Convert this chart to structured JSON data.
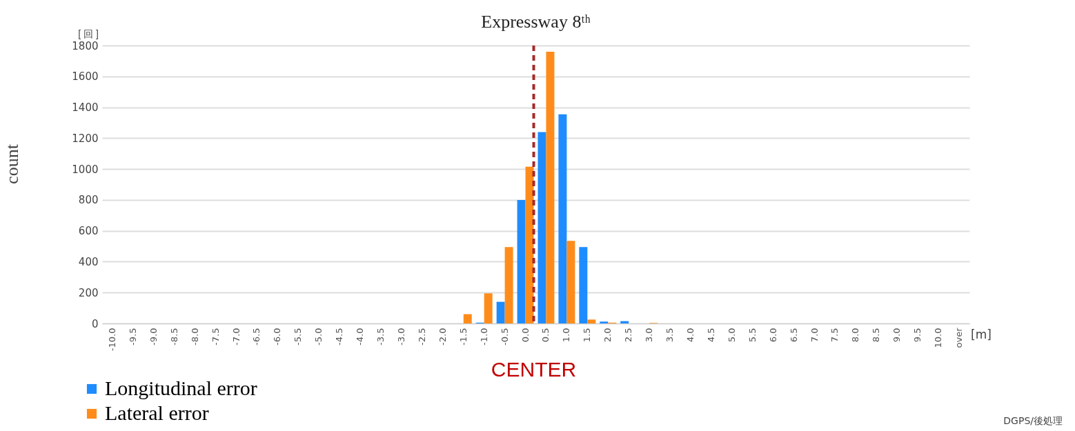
{
  "chart_data": {
    "type": "bar",
    "title": "Expressway 8ᵗʰ",
    "ylabel": "count",
    "xlabel": "[m]",
    "categories": [
      "-10.0",
      "-9.5",
      "-9.0",
      "-8.5",
      "-8.0",
      "-7.5",
      "-7.0",
      "-6.5",
      "-6.0",
      "-5.5",
      "-5.0",
      "-4.5",
      "-4.0",
      "-3.5",
      "-3.0",
      "-2.5",
      "-2.0",
      "-1.5",
      "-1.0",
      "-0.5",
      "0.0",
      "0.5",
      "1.0",
      "1.5",
      "2.0",
      "2.5",
      "3.0",
      "3.5",
      "4.0",
      "4.5",
      "5.0",
      "5.5",
      "6.0",
      "6.5",
      "7.0",
      "7.5",
      "8.0",
      "8.5",
      "9.0",
      "9.5",
      "10.0",
      "over"
    ],
    "series": [
      {
        "name": "Longitudinal error",
        "color": "#1e8cff",
        "values": [
          0,
          0,
          0,
          0,
          0,
          0,
          0,
          0,
          0,
          0,
          0,
          0,
          0,
          0,
          0,
          0,
          0,
          0,
          5,
          140,
          800,
          1240,
          1355,
          495,
          12,
          15,
          0,
          0,
          0,
          0,
          0,
          0,
          0,
          0,
          0,
          0,
          0,
          0,
          0,
          0,
          0,
          0
        ]
      },
      {
        "name": "Lateral error",
        "color": "#ff8c1a",
        "values": [
          0,
          0,
          0,
          0,
          0,
          0,
          0,
          0,
          0,
          0,
          0,
          0,
          0,
          0,
          0,
          0,
          0,
          60,
          195,
          495,
          1015,
          1760,
          535,
          25,
          5,
          0,
          3,
          0,
          0,
          0,
          0,
          0,
          0,
          0,
          0,
          0,
          0,
          0,
          0,
          0,
          0,
          0
        ]
      }
    ],
    "ylim": [
      0,
      1800
    ],
    "yticks": [
      0,
      200,
      400,
      600,
      800,
      1000,
      1200,
      1400,
      1600,
      1800
    ],
    "grid": "y",
    "legend": "bottom left",
    "ref_lines": [
      {
        "axis": "x",
        "value": "0.0",
        "label": "CENTER",
        "color": "#a52a2a",
        "line_style": "dashed"
      }
    ],
    "annotations": [
      "[ 回 ]",
      "DGPS/後処理"
    ]
  }
}
